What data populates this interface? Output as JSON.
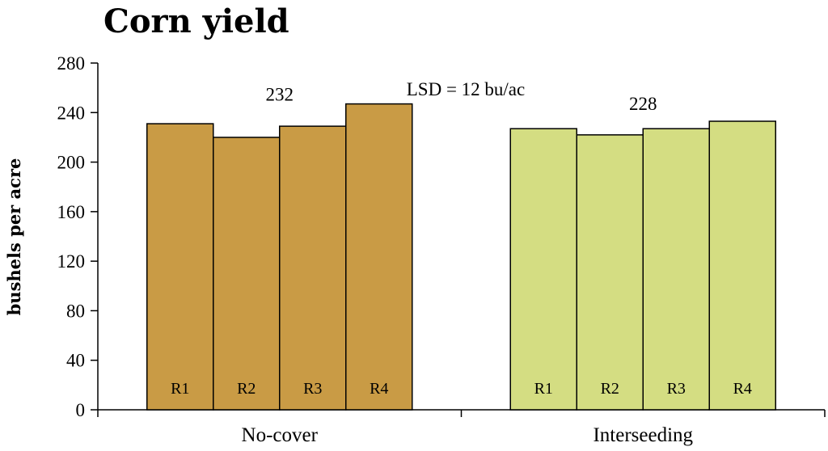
{
  "chart_data": {
    "type": "bar",
    "title": "Corn yield",
    "ylabel": "bushels per acre",
    "xlabel": "",
    "ylim": [
      0,
      280
    ],
    "yticks": [
      0,
      40,
      80,
      120,
      160,
      200,
      240,
      280
    ],
    "grid": false,
    "categories": [
      "No-cover",
      "Interseeding"
    ],
    "groups": [
      {
        "name": "No-cover",
        "color": "#c99b45",
        "mean_label": "232",
        "bars": [
          {
            "label": "R1",
            "value": 231
          },
          {
            "label": "R2",
            "value": 220
          },
          {
            "label": "R3",
            "value": 229
          },
          {
            "label": "R4",
            "value": 247
          }
        ]
      },
      {
        "name": "Interseeding",
        "color": "#d4dd82",
        "mean_label": "228",
        "bars": [
          {
            "label": "R1",
            "value": 227
          },
          {
            "label": "R2",
            "value": 222
          },
          {
            "label": "R3",
            "value": 227
          },
          {
            "label": "R4",
            "value": 233
          }
        ]
      }
    ],
    "annotation": "LSD = 12 bu/ac"
  }
}
